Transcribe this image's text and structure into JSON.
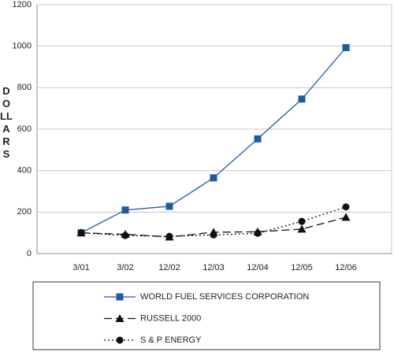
{
  "chart_data": {
    "type": "line",
    "y_label": "DOLLARS",
    "categories": [
      "3/01",
      "3/02",
      "12/02",
      "12/03",
      "12/04",
      "12/05",
      "12/06"
    ],
    "series": [
      {
        "name": "WORLD FUEL SERVICES CORPORATION",
        "color": "#1f5aa6",
        "linestyle": "solid",
        "marker": "square",
        "values": [
          100,
          210,
          228,
          365,
          553,
          745,
          993
        ]
      },
      {
        "name": "RUSSELL 2000",
        "color": "#111111",
        "linestyle": "dashed",
        "marker": "triangle",
        "values": [
          100,
          93,
          80,
          103,
          105,
          118,
          175
        ]
      },
      {
        "name": "S & P ENERGY",
        "color": "#111111",
        "linestyle": "dotted",
        "marker": "circle",
        "values": [
          100,
          87,
          83,
          90,
          98,
          155,
          225
        ]
      }
    ],
    "ylim": [
      0,
      1200
    ],
    "yticks": [
      0,
      200,
      400,
      600,
      800,
      1000,
      1200
    ],
    "grid": true
  }
}
